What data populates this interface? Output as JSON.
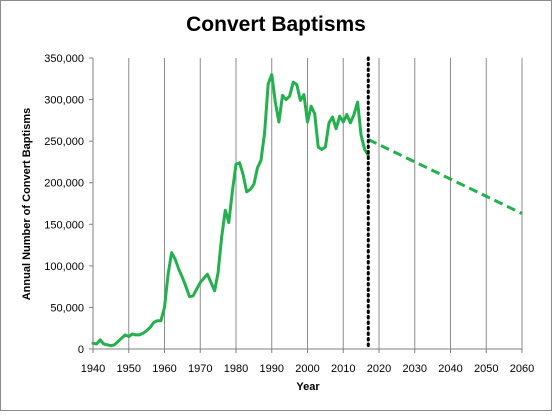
{
  "chart_data": {
    "type": "line",
    "title": "Convert Baptisms",
    "xlabel": "Year",
    "ylabel": "Annual Number of Convert Baptisms",
    "xlim": [
      1940,
      2060
    ],
    "ylim": [
      0,
      350000
    ],
    "x_ticks": [
      1940,
      1950,
      1960,
      1970,
      1980,
      1990,
      2000,
      2010,
      2020,
      2030,
      2040,
      2050,
      2060
    ],
    "x_tick_labels": [
      "1940",
      "1950",
      "1960",
      "1970",
      "1980",
      "1990",
      "2000",
      "2010",
      "2020",
      "2030",
      "2040",
      "2050",
      "2060"
    ],
    "y_ticks": [
      0,
      50000,
      100000,
      150000,
      200000,
      250000,
      300000,
      350000
    ],
    "y_tick_labels": [
      "0",
      "50,000",
      "100,000",
      "150,000",
      "200,000",
      "250,000",
      "300,000",
      "350,000"
    ],
    "grid": "vertical",
    "legend": "none",
    "marker_line": {
      "x": 2017,
      "style": "dotted",
      "color": "#000000"
    },
    "series": [
      {
        "style": "solid",
        "color": "#22b14c",
        "x": [
          1940,
          1941,
          1942,
          1943,
          1944,
          1945,
          1946,
          1947,
          1948,
          1949,
          1950,
          1951,
          1952,
          1953,
          1954,
          1955,
          1956,
          1957,
          1958,
          1959,
          1960,
          1961,
          1962,
          1963,
          1964,
          1965,
          1966,
          1967,
          1968,
          1969,
          1970,
          1971,
          1972,
          1973,
          1974,
          1975,
          1976,
          1977,
          1978,
          1979,
          1980,
          1981,
          1982,
          1983,
          1984,
          1985,
          1986,
          1987,
          1988,
          1989,
          1990,
          1991,
          1992,
          1993,
          1994,
          1995,
          1996,
          1997,
          1998,
          1999,
          2000,
          2001,
          2002,
          2003,
          2004,
          2005,
          2006,
          2007,
          2008,
          2009,
          2010,
          2011,
          2012,
          2013,
          2014,
          2015,
          2016,
          2017
        ],
        "y": [
          7000,
          6000,
          11000,
          6000,
          5000,
          4000,
          5000,
          9000,
          13000,
          17000,
          15000,
          18000,
          17000,
          17000,
          19000,
          22000,
          26000,
          32000,
          34000,
          34000,
          50000,
          90000,
          116000,
          108000,
          96000,
          86000,
          75000,
          63000,
          64000,
          72000,
          80000,
          85000,
          90000,
          80000,
          70000,
          92000,
          135000,
          167000,
          152000,
          190000,
          222000,
          224000,
          210000,
          189000,
          192000,
          198000,
          218000,
          227000,
          260000,
          319000,
          330000,
          297000,
          273000,
          305000,
          300000,
          304000,
          321000,
          318000,
          299000,
          306000,
          273000,
          292000,
          283000,
          243000,
          240000,
          243000,
          272000,
          279000,
          265000,
          280000,
          273000,
          282000,
          272000,
          282000,
          297000,
          257000,
          240000,
          233000
        ]
      },
      {
        "style": "dashed",
        "color": "#22b14c",
        "x": [
          2017,
          2060
        ],
        "y": [
          252000,
          163000
        ]
      }
    ]
  }
}
